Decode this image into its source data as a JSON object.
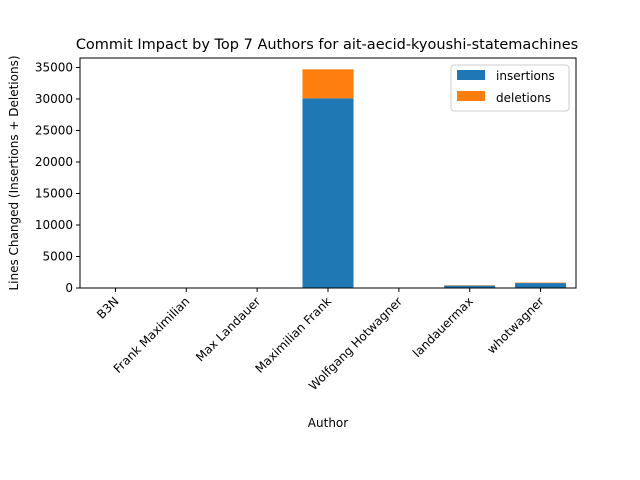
{
  "chart_data": {
    "type": "bar",
    "stacked": true,
    "title": "Commit Impact by Top 7 Authors for ait-aecid-kyoushi-statemachines",
    "xlabel": "Author",
    "ylabel": "Lines Changed (Insertions + Deletions)",
    "categories": [
      "B3N",
      "Frank Maximilian",
      "Max Landauer",
      "Maximilian Frank",
      "Wolfgang Hotwagner",
      "landauermax",
      "whotwagner"
    ],
    "series": [
      {
        "name": "insertions",
        "color": "#1f77b4",
        "values": [
          10,
          5,
          5,
          30100,
          5,
          380,
          780
        ]
      },
      {
        "name": "deletions",
        "color": "#ff7f0e",
        "values": [
          2,
          2,
          2,
          4600,
          2,
          60,
          80
        ]
      }
    ],
    "ylim": [
      0,
      36500
    ],
    "yticks": [
      0,
      5000,
      10000,
      15000,
      20000,
      25000,
      30000,
      35000
    ],
    "grid": false,
    "legend_position": "top-right"
  }
}
